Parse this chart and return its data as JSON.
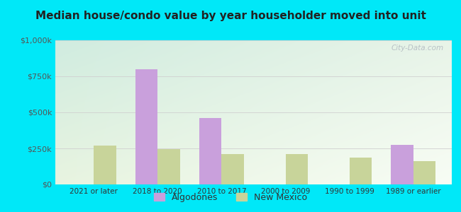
{
  "title": "Median house/condo value by year householder moved into unit",
  "categories": [
    "2021 or later",
    "2018 to 2020",
    "2010 to 2017",
    "2000 to 2009",
    "1990 to 1999",
    "1989 or earlier"
  ],
  "algodones_values": [
    0,
    800000,
    460000,
    0,
    0,
    275000
  ],
  "newmexico_values": [
    270000,
    245000,
    210000,
    210000,
    185000,
    160000
  ],
  "algodones_color": "#c9a0dc",
  "newmexico_color": "#c8d49a",
  "background_outer": "#00e8f8",
  "grad_top_left": "#d0ece0",
  "grad_top_right": "#e8f4e8",
  "grad_bottom": "#f5faf0",
  "ylim": [
    0,
    1000000
  ],
  "yticks": [
    0,
    250000,
    500000,
    750000,
    1000000
  ],
  "ytick_labels": [
    "$0",
    "$250k",
    "$500k",
    "$750k",
    "$1,000k"
  ],
  "legend_labels": [
    "Algodones",
    "New Mexico"
  ],
  "watermark": "City-Data.com",
  "title_fontsize": 11,
  "bar_width": 0.35,
  "grid_color": "#d0d0d0"
}
